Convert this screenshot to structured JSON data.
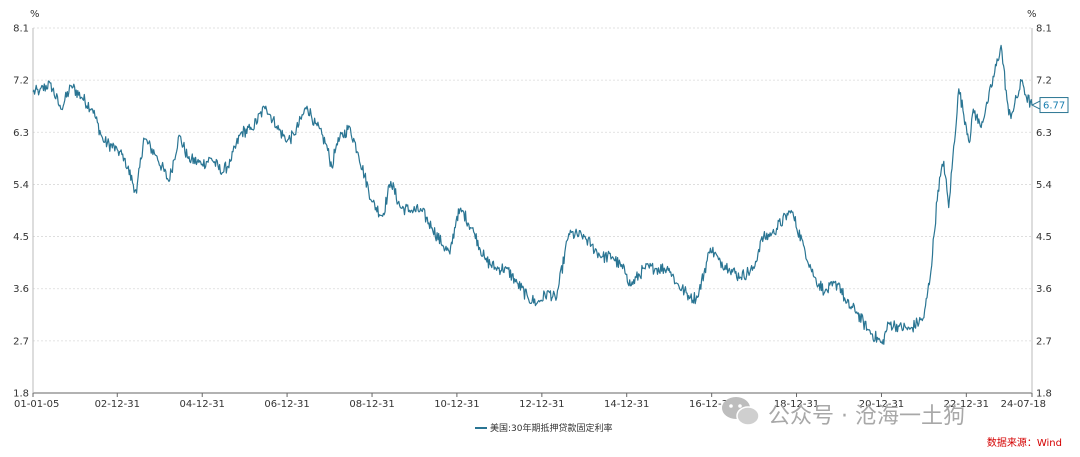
{
  "chart_data": {
    "type": "line",
    "unit_left": "%",
    "unit_right": "%",
    "y_ticks": [
      "1.8",
      "2.7",
      "3.6",
      "4.5",
      "5.4",
      "6.3",
      "7.2",
      "8.1"
    ],
    "ylim": [
      1.8,
      8.1
    ],
    "x_ticks": [
      "01-01-05",
      "02-12-31",
      "04-12-31",
      "06-12-31",
      "08-12-31",
      "10-12-31",
      "12-12-31",
      "14-12-31",
      "16-12-31",
      "18-12-31",
      "20-12-31",
      "22-12-31",
      "24-07-18"
    ],
    "grid": true,
    "series": [
      {
        "name": "美国:30年期抵押贷款固定利率",
        "color": "#2a7593",
        "x": [
          "2001-01-05",
          "2001-03-01",
          "2001-06-01",
          "2001-09-01",
          "2001-12-01",
          "2002-03-01",
          "2002-06-01",
          "2002-09-01",
          "2002-12-31",
          "2003-03-01",
          "2003-06-15",
          "2003-08-15",
          "2003-12-01",
          "2004-03-20",
          "2004-06-15",
          "2004-09-01",
          "2004-12-31",
          "2005-03-20",
          "2005-06-20",
          "2005-09-01",
          "2005-12-01",
          "2006-03-01",
          "2006-07-01",
          "2006-10-01",
          "2006-12-31",
          "2007-03-01",
          "2007-06-20",
          "2007-09-01",
          "2007-12-01",
          "2008-01-20",
          "2008-03-01",
          "2008-06-20",
          "2008-09-01",
          "2008-12-31",
          "2009-04-01",
          "2009-06-10",
          "2009-09-01",
          "2009-12-01",
          "2010-03-01",
          "2010-06-01",
          "2010-09-01",
          "2010-11-01",
          "2010-12-31",
          "2011-02-15",
          "2011-06-01",
          "2011-09-01",
          "2011-12-01",
          "2012-03-01",
          "2012-06-01",
          "2012-09-01",
          "2012-11-20",
          "2013-03-01",
          "2013-05-01",
          "2013-08-20",
          "2013-12-31",
          "2014-03-01",
          "2014-06-01",
          "2014-09-01",
          "2014-12-31",
          "2015-02-01",
          "2015-06-01",
          "2015-09-01",
          "2015-12-31",
          "2016-03-01",
          "2016-07-01",
          "2016-09-01",
          "2016-12-20",
          "2017-03-01",
          "2017-06-01",
          "2017-09-01",
          "2017-12-31",
          "2018-03-01",
          "2018-06-01",
          "2018-11-15",
          "2019-03-01",
          "2019-06-01",
          "2019-09-01",
          "2019-12-31",
          "2020-03-01",
          "2020-06-01",
          "2020-09-01",
          "2021-01-07",
          "2021-03-01",
          "2021-06-01",
          "2021-09-01",
          "2021-12-31",
          "2022-03-01",
          "2022-05-01",
          "2022-06-20",
          "2022-08-01",
          "2022-10-27",
          "2022-12-31",
          "2023-02-01",
          "2023-03-01",
          "2023-05-01",
          "2023-07-01",
          "2023-10-26",
          "2023-12-31",
          "2024-02-01",
          "2024-04-25",
          "2024-06-01",
          "2024-07-18"
        ],
        "values": [
          7.0,
          7.0,
          7.15,
          6.7,
          7.1,
          6.9,
          6.7,
          6.15,
          6.0,
          5.85,
          5.25,
          6.2,
          5.9,
          5.45,
          6.25,
          5.85,
          5.75,
          5.85,
          5.6,
          5.8,
          6.3,
          6.35,
          6.75,
          6.4,
          6.15,
          6.25,
          6.75,
          6.45,
          6.1,
          5.7,
          6.1,
          6.4,
          5.95,
          5.1,
          4.85,
          5.45,
          5.0,
          4.95,
          4.95,
          4.65,
          4.35,
          4.2,
          4.85,
          4.95,
          4.55,
          4.1,
          3.95,
          3.95,
          3.7,
          3.45,
          3.35,
          3.55,
          3.4,
          4.55,
          4.5,
          4.35,
          4.15,
          4.15,
          3.85,
          3.65,
          3.95,
          3.95,
          3.95,
          3.7,
          3.45,
          3.45,
          4.3,
          4.1,
          3.95,
          3.8,
          3.95,
          4.45,
          4.55,
          4.95,
          4.35,
          3.8,
          3.55,
          3.7,
          3.35,
          3.2,
          2.9,
          2.65,
          3.0,
          2.95,
          2.9,
          3.1,
          3.9,
          5.3,
          5.8,
          5.0,
          7.05,
          6.4,
          6.15,
          6.7,
          6.4,
          6.8,
          7.8,
          6.6,
          6.65,
          7.2,
          6.9,
          6.77
        ]
      }
    ],
    "last_value_label": "6.77",
    "source": "数据来源：Wind",
    "watermark": "公众号 · 沧海一土狗"
  }
}
